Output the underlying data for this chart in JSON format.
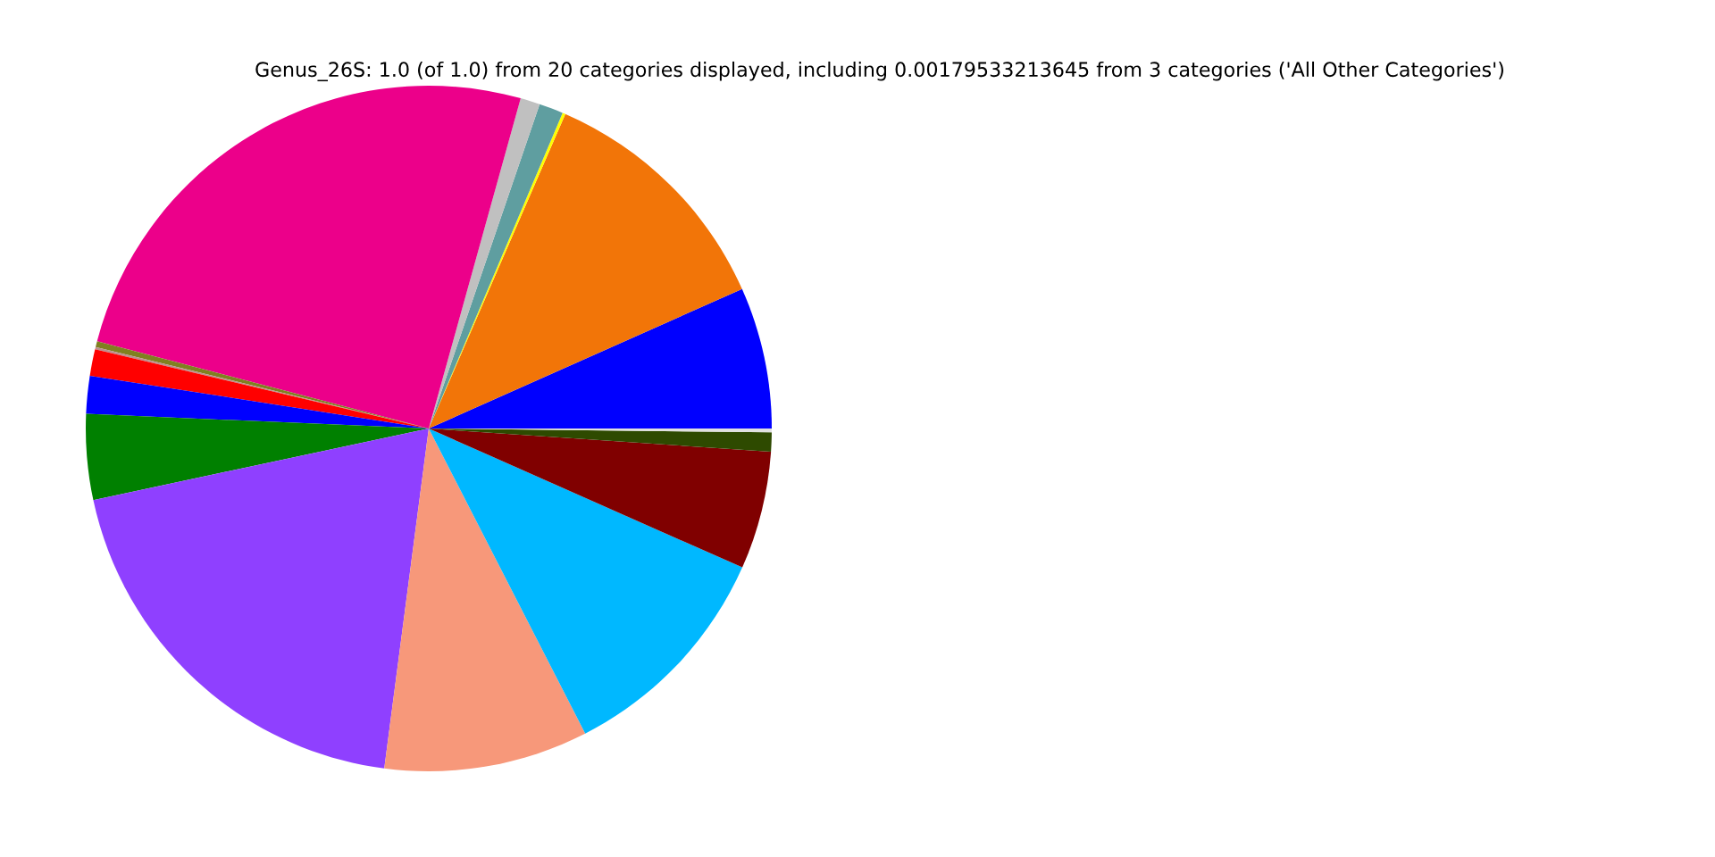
{
  "chart_data": {
    "type": "pie",
    "title": "Genus_26S: 1.0 (of 1.0) from 20 categories displayed, including 0.00179533213645 from 3 categories ('All Other Categories')",
    "categories": [
      null,
      null,
      null,
      null,
      null,
      null,
      null,
      null,
      null,
      null,
      null,
      null,
      null,
      null,
      null,
      null,
      null
    ],
    "values": [
      6.67,
      11.81,
      0.14,
      1.14,
      0.92,
      25.22,
      0.28,
      0.11,
      1.25,
      1.78,
      4.03,
      19.58,
      9.61,
      10.82,
      5.56,
      0.9,
      0.18
    ],
    "colors": [
      "#0000ff",
      "#f27508",
      "#ffff00",
      "#5f9ea0",
      "#c0c0c0",
      "#ec008a",
      "#808020",
      "#bc8f8f",
      "#ff0000",
      "#0000ff",
      "#008000",
      "#8f40ff",
      "#f7987a",
      "#00b8ff",
      "#800000",
      "#2e4a00",
      "#e0e0e0"
    ]
  }
}
